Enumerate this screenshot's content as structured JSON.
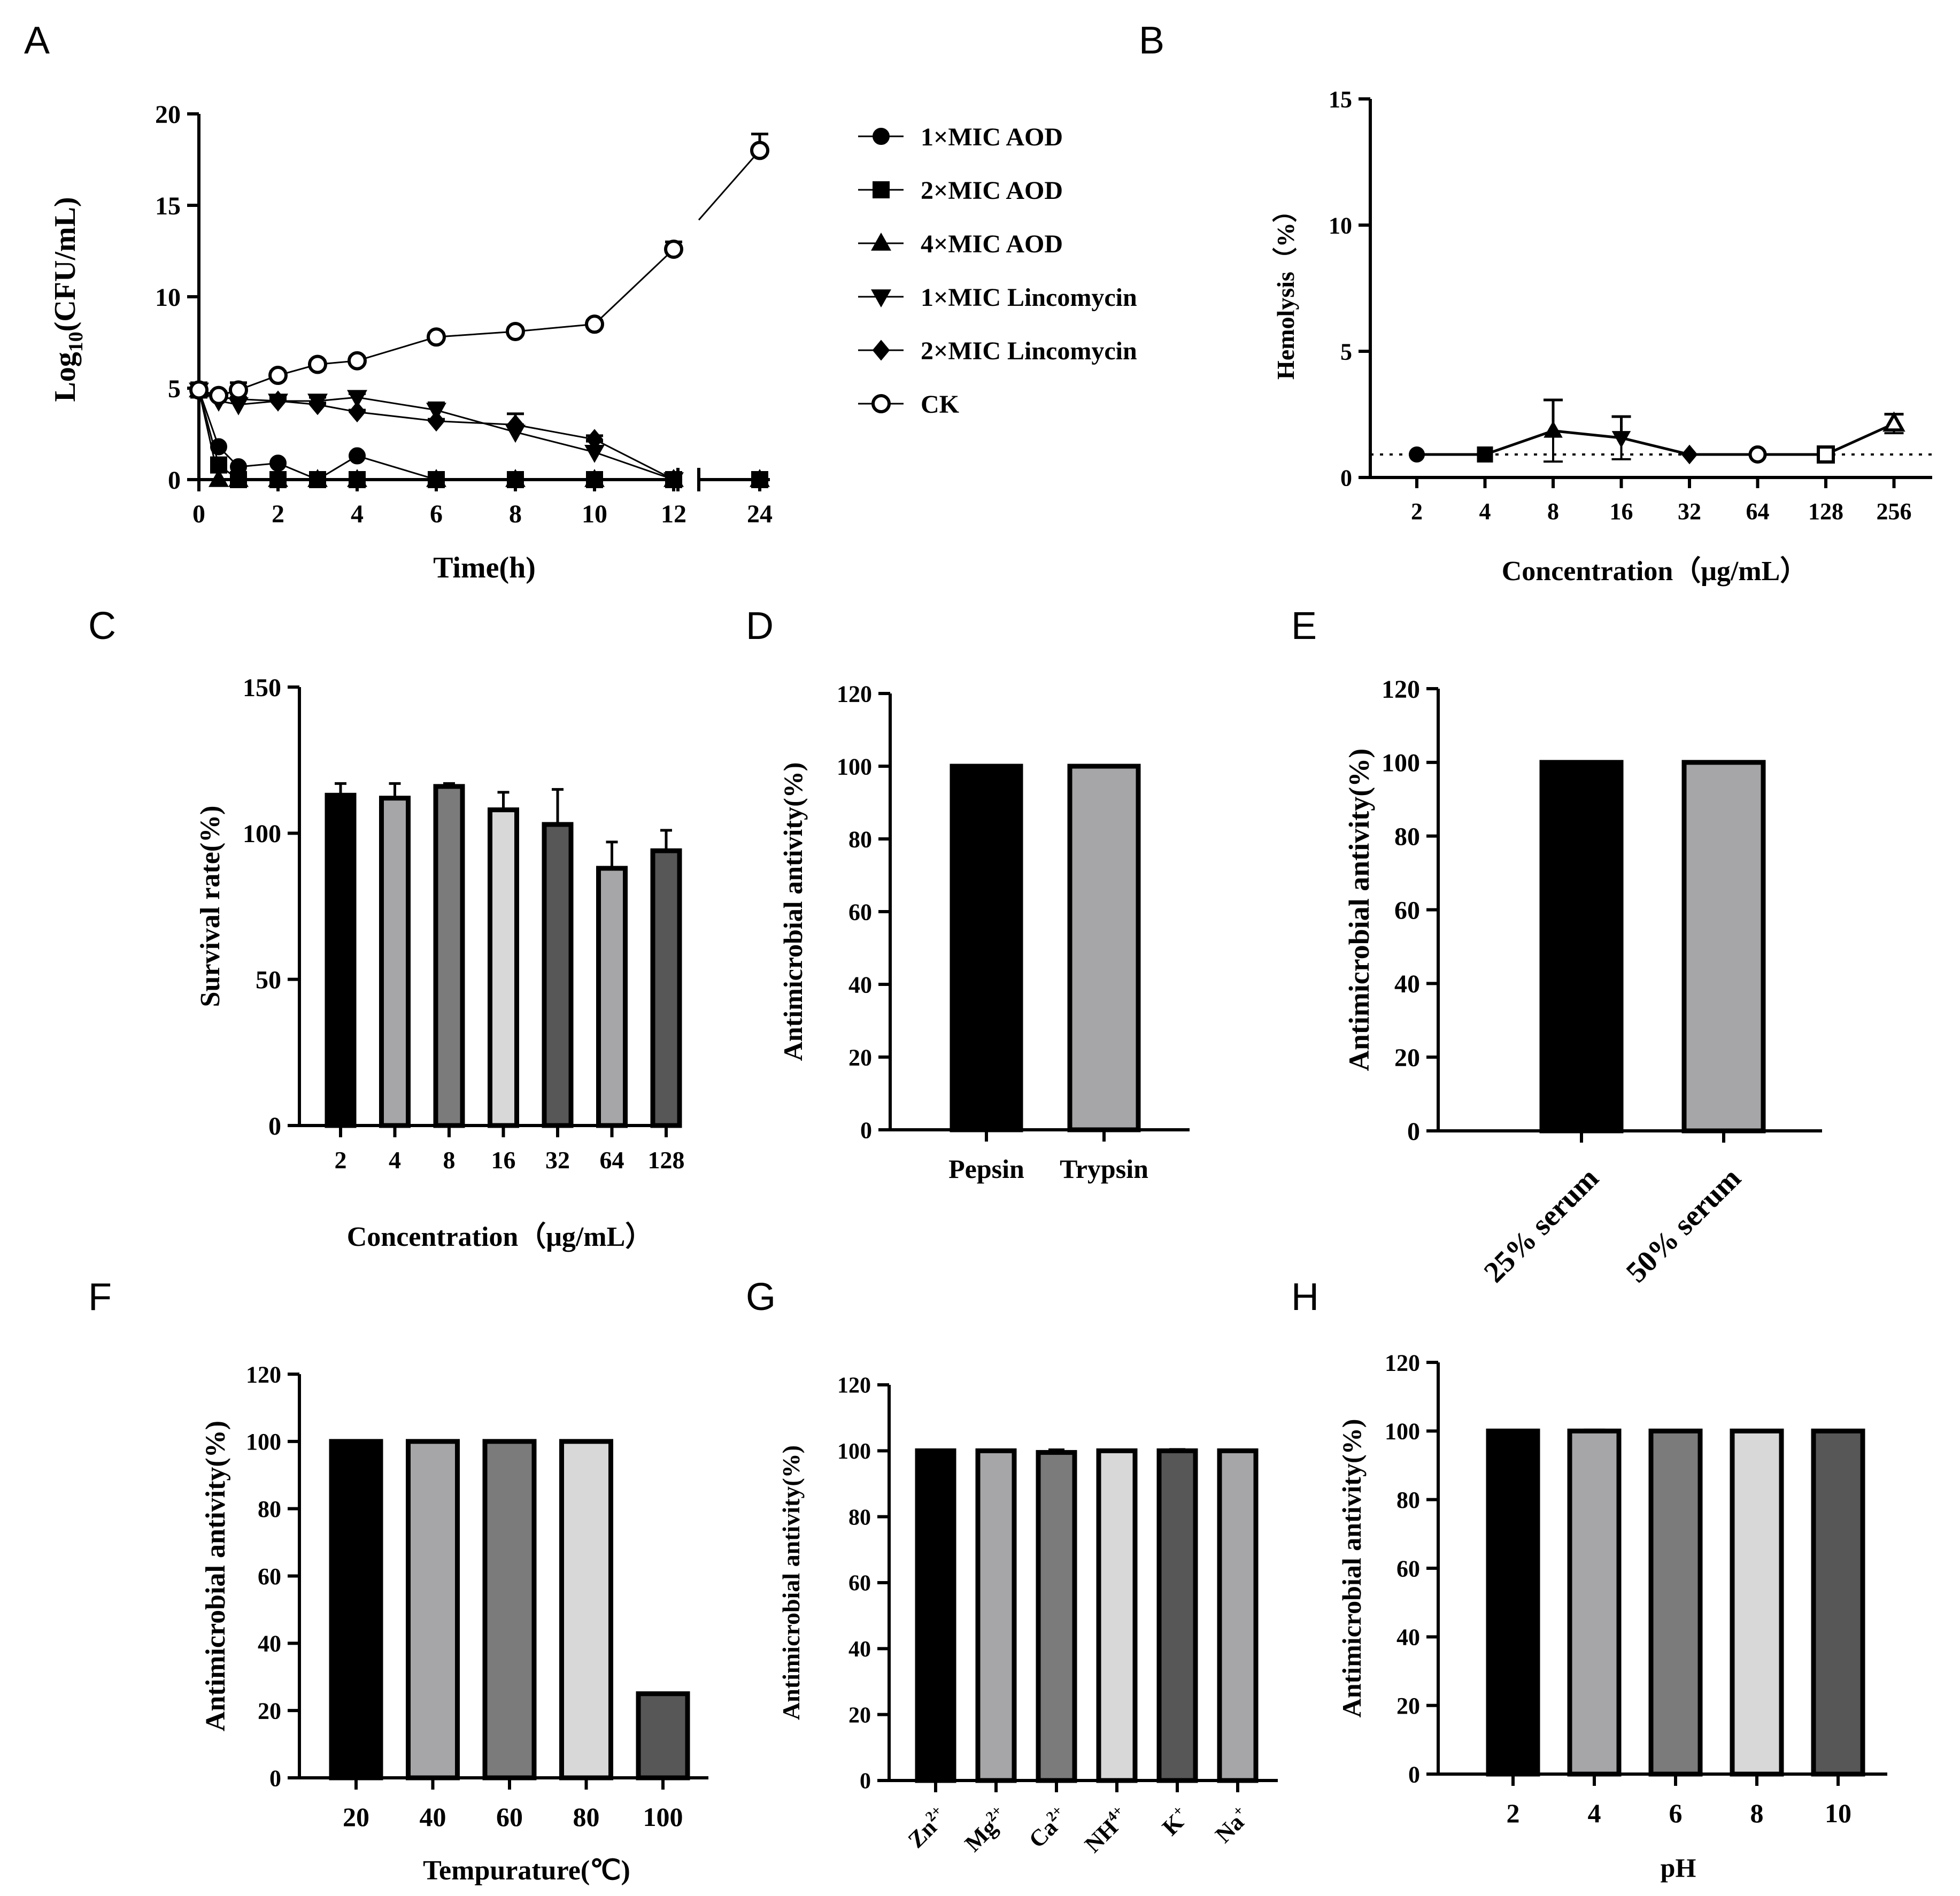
{
  "chart_data": [
    {
      "panel": "A",
      "type": "line",
      "ylabel_main": "Log",
      "ylabel_sub": "10",
      "ylabel_tail": "(CFU/mL)",
      "xlabel": "Time(h)",
      "ylim": [
        0,
        20
      ],
      "yticks": [
        "0",
        "5",
        "10",
        "15",
        "20"
      ],
      "xticks": [
        "0",
        "2",
        "4",
        "6",
        "8",
        "10",
        "12",
        "24"
      ],
      "axis_break_between": [
        12,
        24
      ],
      "series": [
        {
          "name": "1×MIC AOD",
          "marker": "circle-filled",
          "x": [
            0,
            0.5,
            1,
            2,
            3,
            4,
            6,
            8,
            10,
            12,
            24
          ],
          "y": [
            4.9,
            1.8,
            0.7,
            0.9,
            0,
            1.3,
            0,
            0,
            0,
            0,
            0
          ]
        },
        {
          "name": "2×MIC AOD",
          "marker": "square-filled",
          "x": [
            0,
            0.5,
            1,
            2,
            3,
            4,
            6,
            8,
            10,
            12,
            24
          ],
          "y": [
            4.9,
            0.8,
            0,
            0,
            0,
            0,
            0,
            0,
            0,
            0,
            0
          ]
        },
        {
          "name": "4×MIC AOD",
          "marker": "triangle-up-filled",
          "x": [
            0,
            0.5,
            1,
            2,
            3,
            4,
            6,
            8,
            10,
            12,
            24
          ],
          "y": [
            4.9,
            0,
            0,
            0,
            0,
            0,
            0,
            0,
            0,
            0,
            0
          ]
        },
        {
          "name": "1×MIC Lincomycin",
          "marker": "triangle-down-filled",
          "x": [
            0,
            0.5,
            1,
            2,
            3,
            4,
            6,
            8,
            10,
            12
          ],
          "y": [
            4.9,
            4.3,
            4.1,
            4.3,
            4.3,
            4.5,
            3.8,
            2.6,
            1.5,
            0
          ],
          "err": [
            0,
            0.3,
            0.7,
            0.2,
            0.2,
            0.2,
            0.4,
            0.4,
            0.6,
            0
          ]
        },
        {
          "name": "2×MIC Lincomycin",
          "marker": "diamond-filled",
          "x": [
            0,
            0.5,
            1,
            2,
            3,
            4,
            6,
            8,
            10,
            12
          ],
          "y": [
            4.9,
            4.5,
            4.4,
            4.3,
            4.1,
            3.7,
            3.2,
            3.0,
            2.2,
            0
          ],
          "err": [
            0,
            0.1,
            0.1,
            0.1,
            0.1,
            0.1,
            0.1,
            0.6,
            0.2,
            0
          ]
        },
        {
          "name": "CK",
          "marker": "circle-open",
          "x": [
            0,
            0.5,
            1,
            2,
            3,
            4,
            6,
            8,
            10,
            12,
            24
          ],
          "y": [
            4.9,
            4.6,
            4.9,
            5.7,
            6.3,
            6.5,
            7.8,
            8.1,
            8.5,
            12.6,
            18.0
          ],
          "err": [
            0,
            0.2,
            0.4,
            0.2,
            0.2,
            0.2,
            0.2,
            0.2,
            0.2,
            0.4,
            0.9
          ]
        }
      ]
    },
    {
      "panel": "B",
      "type": "line",
      "ylabel": "Hemolysis（%）",
      "xlabel": "Concentration（μg/mL）",
      "ylim": [
        0,
        15
      ],
      "yticks": [
        "0",
        "5",
        "10",
        "15"
      ],
      "categories": [
        "2",
        "4",
        "8",
        "16",
        "32",
        "64",
        "128",
        "256"
      ],
      "markers": [
        "circle-filled",
        "square-filled",
        "triangle-up-filled",
        "triangle-down-filled",
        "diamond-filled",
        "circle-open",
        "square-open",
        "triangle-up-open"
      ],
      "values": [
        0,
        0,
        1.0,
        0.7,
        0,
        0,
        0,
        1.3
      ],
      "err": [
        0,
        0,
        1.3,
        0.9,
        0,
        0,
        0,
        0.4
      ]
    },
    {
      "panel": "C",
      "type": "bar",
      "ylabel": "Survival rate(%)",
      "xlabel": "Concentration（μg/mL）",
      "ylim": [
        0,
        150
      ],
      "yticks": [
        "0",
        "50",
        "100",
        "150"
      ],
      "categories": [
        "2",
        "4",
        "8",
        "16",
        "32",
        "64",
        "128"
      ],
      "values": [
        113,
        112,
        116,
        108,
        103,
        88,
        94
      ],
      "err": [
        4,
        5,
        1,
        6,
        12,
        9,
        7
      ],
      "colors": [
        "#000000",
        "#a6a6a8",
        "#7b7b7b",
        "#d8d8d8",
        "#575757",
        "#a6a6a8",
        "#575757"
      ]
    },
    {
      "panel": "D",
      "type": "bar",
      "ylabel": "Antimicrobial antivity(%)",
      "ylim": [
        0,
        120
      ],
      "yticks": [
        "0",
        "20",
        "40",
        "60",
        "80",
        "100",
        "120"
      ],
      "categories": [
        "Pepsin",
        "Trypsin"
      ],
      "values": [
        100,
        100
      ],
      "colors": [
        "#000000",
        "#a6a6a8"
      ]
    },
    {
      "panel": "E",
      "type": "bar",
      "ylabel": "Antimicrobial antivity(%)",
      "ylim": [
        0,
        120
      ],
      "yticks": [
        "0",
        "20",
        "40",
        "60",
        "80",
        "100",
        "120"
      ],
      "categories": [
        "25% serum",
        "50% serum"
      ],
      "values": [
        100,
        100
      ],
      "colors": [
        "#000000",
        "#a6a6a8"
      ]
    },
    {
      "panel": "F",
      "type": "bar",
      "ylabel": "Antimicrobial antivity(%)",
      "xlabel": "Tempurature(℃)",
      "ylim": [
        0,
        120
      ],
      "yticks": [
        "0",
        "20",
        "40",
        "60",
        "80",
        "100",
        "120"
      ],
      "categories": [
        "20",
        "40",
        "60",
        "80",
        "100"
      ],
      "values": [
        100,
        100,
        100,
        100,
        25
      ],
      "colors": [
        "#000000",
        "#a6a6a8",
        "#7b7b7b",
        "#d8d8d8",
        "#575757"
      ]
    },
    {
      "panel": "G",
      "type": "bar",
      "ylabel": "Antimicrobial antivity(%)",
      "ylim": [
        0,
        120
      ],
      "yticks": [
        "0",
        "20",
        "40",
        "60",
        "80",
        "100",
        "120"
      ],
      "categories": [
        {
          "base": "Zn",
          "sup": "2+"
        },
        {
          "base": "Mg",
          "sup": "2+"
        },
        {
          "base": "Ca",
          "sup": "2+"
        },
        {
          "base": "NH",
          "sup": "4+"
        },
        {
          "base": "K",
          "sup": "+"
        },
        {
          "base": "Na",
          "sup": "+"
        }
      ],
      "values": [
        100,
        100,
        99.5,
        100,
        100,
        100
      ],
      "err": [
        0,
        0,
        0.8,
        0,
        0.4,
        0
      ],
      "colors": [
        "#000000",
        "#a6a6a8",
        "#7b7b7b",
        "#d8d8d8",
        "#575757",
        "#a6a6a8"
      ]
    },
    {
      "panel": "H",
      "type": "bar",
      "ylabel": "Antimicrobial antivity(%)",
      "xlabel": "pH",
      "ylim": [
        0,
        120
      ],
      "yticks": [
        "0",
        "20",
        "40",
        "60",
        "80",
        "100",
        "120"
      ],
      "categories": [
        "2",
        "4",
        "6",
        "8",
        "10"
      ],
      "values": [
        100,
        100,
        100,
        100,
        100
      ],
      "err": [
        0,
        0.3,
        0,
        0,
        0
      ],
      "colors": [
        "#000000",
        "#a6a6a8",
        "#7b7b7b",
        "#d8d8d8",
        "#575757"
      ]
    }
  ]
}
